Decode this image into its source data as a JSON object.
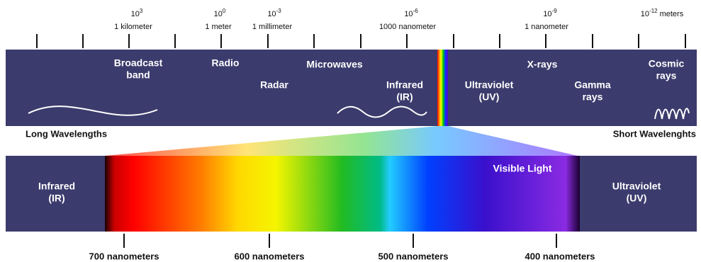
{
  "scale_top": [
    {
      "base": "10",
      "exp": "3",
      "name": "1 kilometer"
    },
    {
      "base": "10",
      "exp": "0",
      "name": "1 meter"
    },
    {
      "base": "10",
      "exp": "-3",
      "name": "1 millimeter"
    },
    {
      "base": "10",
      "exp": "-6",
      "name": "1000 nanometer"
    },
    {
      "base": "10",
      "exp": "-9",
      "name": "1 nanometer"
    },
    {
      "base": "10",
      "exp": "-12",
      "unit": "meters"
    }
  ],
  "bands": [
    {
      "lines": [
        "Broadcast",
        "band"
      ]
    },
    {
      "lines": [
        "Radio"
      ]
    },
    {
      "lines": [
        "Microwaves"
      ]
    },
    {
      "lines": [
        "Radar"
      ]
    },
    {
      "lines": [
        "Infrared",
        "(IR)"
      ]
    },
    {
      "lines": [
        "Ultraviolet",
        "(UV)"
      ]
    },
    {
      "lines": [
        "X-rays"
      ]
    },
    {
      "lines": [
        "Gamma",
        "rays"
      ]
    },
    {
      "lines": [
        "Cosmic",
        "rays"
      ]
    }
  ],
  "long_label": "Long Wavelengths",
  "short_label": "Short Wavelenghts",
  "visible": {
    "left": [
      "Infrared",
      "(IR)"
    ],
    "title": "Visible Light",
    "right": [
      "Ultraviolet",
      "(UV)"
    ]
  },
  "scale_bottom": [
    "700 nanometers",
    "600 nanometers",
    "500 nanometers",
    "400 nanometers"
  ]
}
